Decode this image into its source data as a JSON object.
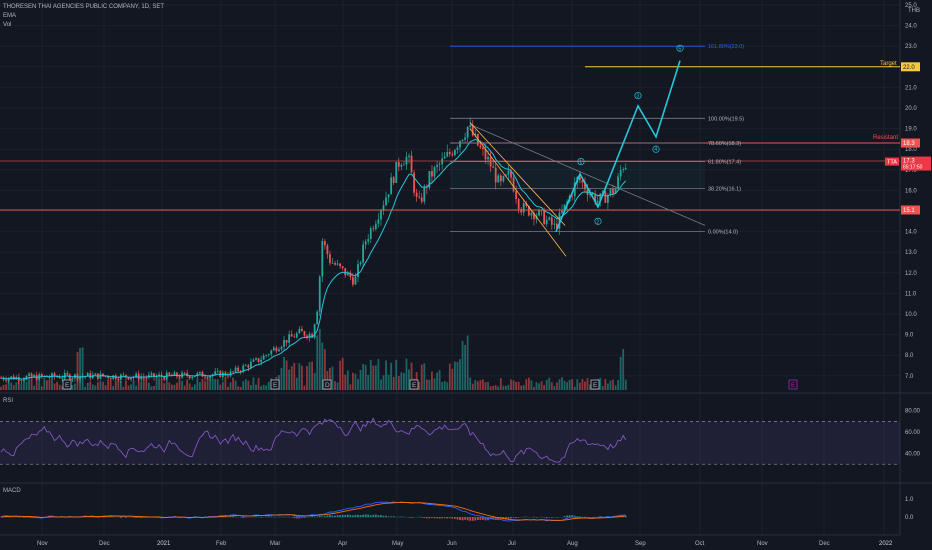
{
  "header": {
    "title": "THORESEN THAI AGENCIES PUBLIC COMPANY, 1D, SET",
    "indicator_1": "EMA",
    "indicator_2": "Vol",
    "currency": "THB"
  },
  "colors": {
    "background": "#131722",
    "grid": "#1c202b",
    "up": "#26a69a",
    "down": "#ef5350",
    "ema": "#26c6da",
    "fib": "#787b86",
    "fib_ext": "#2962ff",
    "target": "#f5c842",
    "resistance": "#ef5350",
    "elliott": "#26c6da",
    "rsi": "#7e57c2",
    "macd": "#2962ff",
    "signal": "#ff6d00",
    "channel_orange": "#ffb74d"
  },
  "price_axis": {
    "labels": [
      "25.0",
      "24.0",
      "23.0",
      "22.0",
      "21.0",
      "20.0",
      "19.0",
      "18.0",
      "17.0",
      "16.0",
      "15.0",
      "14.0",
      "13.0",
      "12.0",
      "11.0",
      "10.0",
      "9.0",
      "8.0",
      "7.0"
    ]
  },
  "time_axis": {
    "labels": [
      "Nov",
      "Dec",
      "2021",
      "Feb",
      "Mar",
      "Apr",
      "May",
      "Jun",
      "Jul",
      "Aug",
      "Sep",
      "Oct",
      "Nov",
      "Dec",
      "2022"
    ]
  },
  "badges": {
    "target_label": "Target",
    "target_value": "22.0",
    "resistance_label": "Resistant",
    "resistance_value": "18.3",
    "support_value": "15.1",
    "ticker": "TTA",
    "last_price": "17.3",
    "countdown": "65:17:50"
  },
  "fib_levels": [
    {
      "label": "161.80%(23.0)",
      "price": 23.0,
      "ext": true
    },
    {
      "label": "100.00%(19.5)",
      "price": 19.5,
      "ext": false
    },
    {
      "label": "78.60%(18.3)",
      "price": 18.3,
      "ext": false
    },
    {
      "label": "61.80%(17.4)",
      "price": 17.4,
      "ext": false
    },
    {
      "label": "38.20%(16.1)",
      "price": 16.1,
      "ext": false
    },
    {
      "label": "0.00%(14.0)",
      "price": 14.0,
      "ext": false
    }
  ],
  "elliott_labels": [
    "1",
    "2",
    "3",
    "4",
    "5"
  ],
  "event_markers": [
    "E",
    "E",
    "D",
    "E",
    "E",
    "E"
  ],
  "rsi": {
    "title": "RSI",
    "levels": [
      "80.00",
      "60.00",
      "40.00"
    ]
  },
  "macd": {
    "title": "MACD",
    "levels": [
      "1.0",
      "0.0"
    ]
  }
}
